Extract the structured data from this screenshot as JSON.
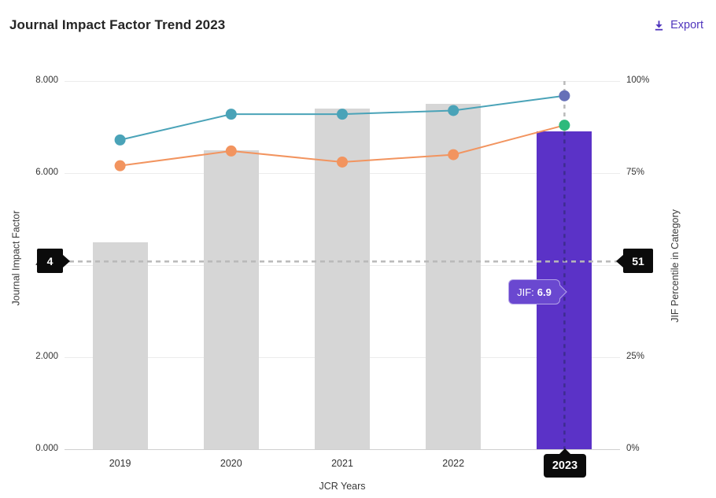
{
  "header": {
    "title": "Journal Impact Factor Trend 2023",
    "export_label": "Export"
  },
  "chart_data": {
    "type": "bar",
    "title": "Journal Impact Factor Trend 2023",
    "categories": [
      "2019",
      "2020",
      "2021",
      "2022",
      "2023"
    ],
    "bars": {
      "name": "Journal Impact Factor (JIF)",
      "values": [
        4.5,
        6.5,
        7.4,
        7.5,
        6.9
      ],
      "highlight_index": 4,
      "bar_color": "#d6d6d6",
      "highlight_color": "#5b32c7"
    },
    "series": [
      {
        "name": "jif-percentile-line-1",
        "values": [
          84,
          91,
          91,
          92,
          96
        ],
        "color": "#4aa3b8",
        "last_point_color": "#6670b8"
      },
      {
        "name": "jif-percentile-line-2",
        "values": [
          77,
          81,
          78,
          80,
          88
        ],
        "color": "#f2945f",
        "last_point_color": "#2eba7c"
      }
    ],
    "xlabel": "JCR Years",
    "ylabel_left": "Journal Impact Factor",
    "ylabel_right": "JIF Percentile in Category",
    "yticks_left": [
      "8.000",
      "6.000",
      "4.000",
      "2.000",
      "0.000"
    ],
    "yticks_right": [
      "100%",
      "75%",
      "50%",
      "25%",
      "0%"
    ],
    "ylim_left": [
      0,
      8
    ],
    "ylim_right": [
      0,
      100
    ],
    "grid": "horizontal",
    "legend": "none",
    "crosshair": {
      "year": "2023",
      "left_axis_value": "4",
      "right_axis_value": "51",
      "percentile_position": 51,
      "tooltip_label": "JIF:",
      "tooltip_value": "6.9"
    }
  },
  "colors": {
    "accent_purple": "#4f35bd",
    "bar_gray": "#d6d6d6",
    "bar_purple": "#5b32c7",
    "line_teal": "#4aa3b8",
    "line_orange": "#f2945f",
    "dot_green": "#2eba7c",
    "dot_slate": "#6670b8",
    "crosshair_gray": "#b9b9b9",
    "crosshair_dark": "#3d2c8f",
    "marker_black": "#0b0b0b"
  }
}
